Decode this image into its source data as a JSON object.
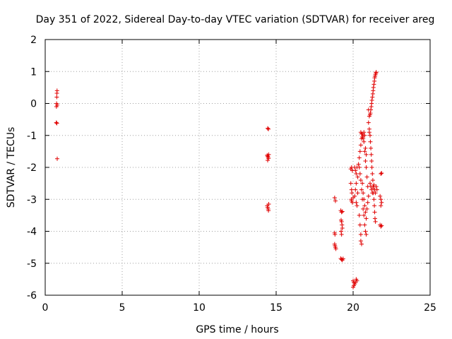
{
  "chart_data": {
    "type": "scatter",
    "title": "Day 351 of 2022, Sidereal Day-to-day VTEC variation (SDTVAR) for receiver areg",
    "xlabel": "GPS time / hours",
    "ylabel": "SDTVAR / TECUs",
    "xlim": [
      0,
      25
    ],
    "ylim": [
      -6,
      2
    ],
    "xticks": [
      0,
      5,
      10,
      15,
      20,
      25
    ],
    "yticks": [
      -6,
      -5,
      -4,
      -3,
      -2,
      -1,
      0,
      1,
      2
    ],
    "grid": true,
    "marker": "plus",
    "color": "#e00000",
    "series": [
      {
        "name": "SDTVAR",
        "points": [
          [
            0.72,
            -0.6
          ],
          [
            0.73,
            -0.1
          ],
          [
            0.74,
            0.0
          ],
          [
            0.75,
            0.2
          ],
          [
            0.76,
            0.32
          ],
          [
            0.77,
            0.4
          ],
          [
            0.78,
            -0.05
          ],
          [
            0.76,
            -0.62
          ],
          [
            0.78,
            -1.73
          ],
          [
            14.45,
            -0.78
          ],
          [
            14.5,
            -0.8
          ],
          [
            14.42,
            -1.62
          ],
          [
            14.45,
            -1.65
          ],
          [
            14.48,
            -1.68
          ],
          [
            14.5,
            -1.72
          ],
          [
            14.52,
            -1.6
          ],
          [
            14.45,
            -1.78
          ],
          [
            14.42,
            -3.2
          ],
          [
            14.45,
            -3.25
          ],
          [
            14.48,
            -3.3
          ],
          [
            14.5,
            -3.35
          ],
          [
            14.52,
            -3.15
          ],
          [
            18.8,
            -2.95
          ],
          [
            18.85,
            -3.05
          ],
          [
            18.8,
            -4.05
          ],
          [
            18.82,
            -4.1
          ],
          [
            18.8,
            -4.4
          ],
          [
            18.82,
            -4.45
          ],
          [
            18.85,
            -4.5
          ],
          [
            18.88,
            -4.55
          ],
          [
            19.2,
            -3.35
          ],
          [
            19.25,
            -3.4
          ],
          [
            19.3,
            -3.38
          ],
          [
            19.22,
            -3.65
          ],
          [
            19.25,
            -3.7
          ],
          [
            19.28,
            -3.8
          ],
          [
            19.3,
            -3.9
          ],
          [
            19.22,
            -4.0
          ],
          [
            19.25,
            -4.1
          ],
          [
            19.2,
            -4.85
          ],
          [
            19.25,
            -4.88
          ],
          [
            19.3,
            -4.9
          ],
          [
            19.35,
            -4.86
          ],
          [
            19.85,
            -2.05
          ],
          [
            19.9,
            -2.0
          ],
          [
            19.95,
            -2.1
          ],
          [
            19.85,
            -2.5
          ],
          [
            19.9,
            -2.7
          ],
          [
            19.92,
            -2.8
          ],
          [
            19.88,
            -3.0
          ],
          [
            19.9,
            -3.05
          ],
          [
            19.95,
            -3.1
          ],
          [
            20.0,
            -2.95
          ],
          [
            20.0,
            -5.55
          ],
          [
            20.05,
            -5.6
          ],
          [
            20.1,
            -5.65
          ],
          [
            20.15,
            -5.6
          ],
          [
            20.2,
            -5.5
          ],
          [
            20.25,
            -5.55
          ],
          [
            20.0,
            -5.75
          ],
          [
            20.05,
            -5.7
          ],
          [
            20.1,
            -2.0
          ],
          [
            20.15,
            -2.1
          ],
          [
            20.2,
            -2.2
          ],
          [
            20.25,
            -2.0
          ],
          [
            20.3,
            -2.3
          ],
          [
            20.2,
            -2.5
          ],
          [
            20.15,
            -2.7
          ],
          [
            20.1,
            -2.9
          ],
          [
            20.2,
            -3.1
          ],
          [
            20.25,
            -3.2
          ],
          [
            20.3,
            -2.8
          ],
          [
            20.35,
            -1.9
          ],
          [
            20.4,
            -1.7
          ],
          [
            20.45,
            -1.5
          ],
          [
            20.5,
            -1.3
          ],
          [
            20.55,
            -1.1
          ],
          [
            20.6,
            -0.95
          ],
          [
            20.65,
            -1.0
          ],
          [
            20.7,
            -1.2
          ],
          [
            20.75,
            -1.5
          ],
          [
            20.8,
            -1.8
          ],
          [
            20.85,
            -2.0
          ],
          [
            20.9,
            -2.3
          ],
          [
            20.95,
            -2.6
          ],
          [
            20.4,
            -2.0
          ],
          [
            20.45,
            -2.2
          ],
          [
            20.5,
            -2.4
          ],
          [
            20.55,
            -2.7
          ],
          [
            20.6,
            -3.0
          ],
          [
            20.65,
            -3.3
          ],
          [
            20.7,
            -3.5
          ],
          [
            20.75,
            -3.8
          ],
          [
            20.8,
            -4.0
          ],
          [
            20.85,
            -4.1
          ],
          [
            20.4,
            -3.5
          ],
          [
            20.45,
            -3.8
          ],
          [
            20.5,
            -4.1
          ],
          [
            20.55,
            -4.4
          ],
          [
            20.5,
            -4.3
          ],
          [
            20.5,
            -0.9
          ],
          [
            20.55,
            -0.95
          ],
          [
            20.6,
            -1.05
          ],
          [
            20.65,
            -1.1
          ],
          [
            20.7,
            -0.9
          ],
          [
            20.75,
            -1.0
          ],
          [
            20.8,
            -1.4
          ],
          [
            20.85,
            -1.6
          ],
          [
            20.6,
            -2.5
          ],
          [
            20.65,
            -2.8
          ],
          [
            20.7,
            -3.0
          ],
          [
            20.75,
            -3.2
          ],
          [
            20.8,
            -3.4
          ],
          [
            20.85,
            -3.6
          ],
          [
            20.9,
            -3.3
          ],
          [
            20.95,
            -3.1
          ],
          [
            21.0,
            -2.9
          ],
          [
            21.05,
            -0.9
          ],
          [
            21.1,
            -1.0
          ],
          [
            21.12,
            -1.2
          ],
          [
            21.15,
            -1.4
          ],
          [
            21.18,
            -1.6
          ],
          [
            21.2,
            -1.8
          ],
          [
            21.22,
            -2.0
          ],
          [
            21.25,
            -2.2
          ],
          [
            21.28,
            -2.4
          ],
          [
            21.3,
            -2.6
          ],
          [
            21.32,
            -2.8
          ],
          [
            21.35,
            -3.0
          ],
          [
            21.38,
            -3.2
          ],
          [
            21.4,
            -3.4
          ],
          [
            21.42,
            -3.6
          ],
          [
            21.45,
            -3.7
          ],
          [
            21.1,
            -2.5
          ],
          [
            21.15,
            -2.6
          ],
          [
            21.2,
            -2.7
          ],
          [
            21.25,
            -2.8
          ],
          [
            21.3,
            -2.65
          ],
          [
            21.35,
            -2.55
          ],
          [
            21.4,
            -2.7
          ],
          [
            21.45,
            -2.8
          ],
          [
            21.5,
            -2.6
          ],
          [
            21.55,
            -2.7
          ],
          [
            21.1,
            -0.35
          ],
          [
            21.12,
            -0.3
          ],
          [
            21.15,
            -0.2
          ],
          [
            21.18,
            -0.1
          ],
          [
            21.2,
            0.0
          ],
          [
            21.22,
            0.1
          ],
          [
            21.25,
            0.2
          ],
          [
            21.28,
            0.3
          ],
          [
            21.3,
            0.4
          ],
          [
            21.32,
            0.5
          ],
          [
            21.35,
            0.6
          ],
          [
            21.38,
            0.7
          ],
          [
            21.4,
            0.8
          ],
          [
            21.42,
            0.85
          ],
          [
            21.45,
            0.9
          ],
          [
            21.48,
            0.95
          ],
          [
            21.5,
            0.98
          ],
          [
            21.0,
            -0.2
          ],
          [
            21.05,
            -0.4
          ],
          [
            21.0,
            -0.6
          ],
          [
            21.05,
            -0.8
          ],
          [
            21.8,
            -2.2
          ],
          [
            21.85,
            -2.18
          ],
          [
            21.75,
            -2.9
          ],
          [
            21.8,
            -3.0
          ],
          [
            21.85,
            -3.1
          ],
          [
            21.75,
            -3.8
          ],
          [
            21.8,
            -3.85
          ],
          [
            21.85,
            -3.82
          ],
          [
            21.8,
            -3.2
          ]
        ]
      }
    ]
  }
}
